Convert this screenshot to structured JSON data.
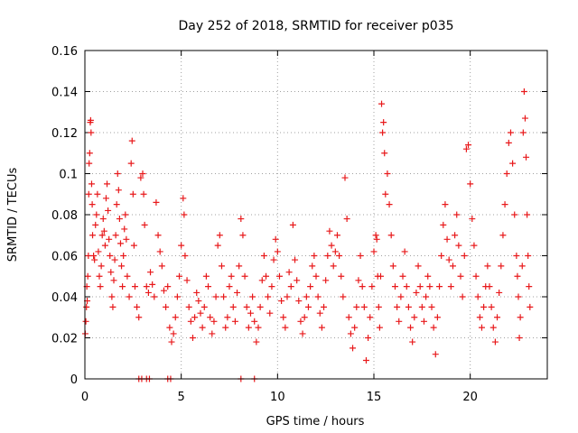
{
  "chart_data": {
    "type": "scatter",
    "title": "Day 252 of 2018, SRMTID for receiver p035",
    "xlabel": "GPS time / hours",
    "ylabel": "SRMTID / TECUs",
    "xlim": [
      0,
      24
    ],
    "ylim": [
      0,
      0.16
    ],
    "xticks": [
      0,
      5,
      10,
      15,
      20
    ],
    "xtick_labels": [
      "0",
      "5",
      "10",
      "15",
      "20"
    ],
    "yticks": [
      0,
      0.02,
      0.04,
      0.06,
      0.08,
      0.1,
      0.12,
      0.14,
      0.16
    ],
    "ytick_labels": [
      "0",
      "0.02",
      "0.04",
      "0.06",
      "0.08",
      "0.1",
      "0.12",
      "0.14",
      "0.16"
    ],
    "grid": true,
    "marker": "plus",
    "color": "#e8191b",
    "series": [
      {
        "name": "SRMTID",
        "points": [
          [
            0.02,
            0.022
          ],
          [
            0.05,
            0.028
          ],
          [
            0.08,
            0.035
          ],
          [
            0.1,
            0.045
          ],
          [
            0.12,
            0.038
          ],
          [
            0.15,
            0.05
          ],
          [
            0.18,
            0.06
          ],
          [
            0.2,
            0.09
          ],
          [
            0.22,
            0.105
          ],
          [
            0.25,
            0.11
          ],
          [
            0.28,
            0.125
          ],
          [
            0.3,
            0.126
          ],
          [
            0.32,
            0.12
          ],
          [
            0.35,
            0.095
          ],
          [
            0.38,
            0.085
          ],
          [
            0.4,
            0.07
          ],
          [
            0.45,
            0.06
          ],
          [
            0.5,
            0.058
          ],
          [
            0.55,
            0.075
          ],
          [
            0.6,
            0.08
          ],
          [
            0.65,
            0.09
          ],
          [
            0.7,
            0.062
          ],
          [
            0.75,
            0.05
          ],
          [
            0.8,
            0.045
          ],
          [
            0.85,
            0.055
          ],
          [
            0.9,
            0.07
          ],
          [
            0.95,
            0.078
          ],
          [
            1.0,
            0.072
          ],
          [
            1.05,
            0.065
          ],
          [
            1.1,
            0.088
          ],
          [
            1.15,
            0.095
          ],
          [
            1.2,
            0.082
          ],
          [
            1.25,
            0.068
          ],
          [
            1.3,
            0.06
          ],
          [
            1.35,
            0.052
          ],
          [
            1.4,
            0.04
          ],
          [
            1.45,
            0.035
          ],
          [
            1.5,
            0.048
          ],
          [
            1.55,
            0.058
          ],
          [
            1.6,
            0.07
          ],
          [
            1.65,
            0.085
          ],
          [
            1.7,
            0.1
          ],
          [
            1.75,
            0.092
          ],
          [
            1.8,
            0.078
          ],
          [
            1.85,
            0.066
          ],
          [
            1.9,
            0.055
          ],
          [
            1.95,
            0.045
          ],
          [
            2.0,
            0.06
          ],
          [
            2.05,
            0.073
          ],
          [
            2.1,
            0.08
          ],
          [
            2.15,
            0.068
          ],
          [
            2.2,
            0.05
          ],
          [
            2.3,
            0.04
          ],
          [
            2.4,
            0.105
          ],
          [
            2.45,
            0.116
          ],
          [
            2.5,
            0.09
          ],
          [
            2.55,
            0.065
          ],
          [
            2.6,
            0.045
          ],
          [
            2.7,
            0.035
          ],
          [
            2.8,
            0.03
          ],
          [
            2.9,
            0.098
          ],
          [
            3.0,
            0.1
          ],
          [
            3.05,
            0.09
          ],
          [
            3.1,
            0.075
          ],
          [
            3.2,
            0.045
          ],
          [
            3.3,
            0.042
          ],
          [
            3.4,
            0.052
          ],
          [
            3.5,
            0.046
          ],
          [
            3.6,
            0.04
          ],
          [
            3.7,
            0.086
          ],
          [
            3.8,
            0.07
          ],
          [
            3.9,
            0.062
          ],
          [
            4.0,
            0.055
          ],
          [
            4.1,
            0.043
          ],
          [
            4.2,
            0.035
          ],
          [
            4.3,
            0.045
          ],
          [
            4.4,
            0.025
          ],
          [
            4.5,
            0.018
          ],
          [
            4.6,
            0.022
          ],
          [
            4.7,
            0.03
          ],
          [
            4.8,
            0.04
          ],
          [
            4.9,
            0.05
          ],
          [
            5.0,
            0.065
          ],
          [
            5.1,
            0.088
          ],
          [
            5.15,
            0.08
          ],
          [
            5.2,
            0.06
          ],
          [
            5.3,
            0.048
          ],
          [
            5.4,
            0.035
          ],
          [
            5.5,
            0.028
          ],
          [
            5.6,
            0.02
          ],
          [
            5.7,
            0.03
          ],
          [
            5.8,
            0.042
          ],
          [
            5.9,
            0.038
          ],
          [
            6.0,
            0.032
          ],
          [
            6.1,
            0.025
          ],
          [
            6.2,
            0.035
          ],
          [
            6.3,
            0.05
          ],
          [
            6.4,
            0.045
          ],
          [
            6.5,
            0.03
          ],
          [
            6.6,
            0.022
          ],
          [
            6.7,
            0.028
          ],
          [
            6.8,
            0.04
          ],
          [
            6.9,
            0.065
          ],
          [
            7.0,
            0.07
          ],
          [
            7.1,
            0.055
          ],
          [
            7.2,
            0.04
          ],
          [
            7.3,
            0.025
          ],
          [
            7.4,
            0.03
          ],
          [
            7.5,
            0.045
          ],
          [
            7.6,
            0.05
          ],
          [
            7.7,
            0.035
          ],
          [
            7.8,
            0.028
          ],
          [
            7.9,
            0.042
          ],
          [
            8.0,
            0.055
          ],
          [
            8.1,
            0.078
          ],
          [
            8.2,
            0.07
          ],
          [
            8.3,
            0.05
          ],
          [
            8.4,
            0.035
          ],
          [
            8.5,
            0.025
          ],
          [
            8.6,
            0.032
          ],
          [
            8.7,
            0.04
          ],
          [
            8.8,
            0.028
          ],
          [
            8.9,
            0.018
          ],
          [
            9.0,
            0.025
          ],
          [
            9.1,
            0.035
          ],
          [
            9.2,
            0.048
          ],
          [
            9.3,
            0.06
          ],
          [
            9.4,
            0.05
          ],
          [
            9.5,
            0.04
          ],
          [
            9.6,
            0.032
          ],
          [
            9.7,
            0.045
          ],
          [
            9.8,
            0.058
          ],
          [
            9.9,
            0.068
          ],
          [
            10.0,
            0.062
          ],
          [
            10.1,
            0.05
          ],
          [
            10.2,
            0.038
          ],
          [
            10.3,
            0.03
          ],
          [
            10.4,
            0.025
          ],
          [
            10.5,
            0.04
          ],
          [
            10.6,
            0.052
          ],
          [
            10.7,
            0.045
          ],
          [
            10.8,
            0.075
          ],
          [
            10.9,
            0.058
          ],
          [
            11.0,
            0.048
          ],
          [
            11.1,
            0.038
          ],
          [
            11.2,
            0.028
          ],
          [
            11.3,
            0.022
          ],
          [
            11.4,
            0.03
          ],
          [
            11.5,
            0.04
          ],
          [
            11.6,
            0.035
          ],
          [
            11.7,
            0.045
          ],
          [
            11.8,
            0.055
          ],
          [
            11.9,
            0.06
          ],
          [
            12.0,
            0.05
          ],
          [
            12.1,
            0.04
          ],
          [
            12.2,
            0.032
          ],
          [
            12.3,
            0.025
          ],
          [
            12.4,
            0.035
          ],
          [
            12.5,
            0.048
          ],
          [
            12.6,
            0.06
          ],
          [
            12.7,
            0.072
          ],
          [
            12.8,
            0.065
          ],
          [
            12.9,
            0.055
          ],
          [
            13.0,
            0.062
          ],
          [
            13.1,
            0.07
          ],
          [
            13.2,
            0.06
          ],
          [
            13.3,
            0.05
          ],
          [
            13.4,
            0.04
          ],
          [
            13.5,
            0.098
          ],
          [
            13.6,
            0.078
          ],
          [
            13.7,
            0.03
          ],
          [
            13.8,
            0.022
          ],
          [
            13.9,
            0.015
          ],
          [
            14.0,
            0.025
          ],
          [
            14.1,
            0.035
          ],
          [
            14.2,
            0.048
          ],
          [
            14.3,
            0.06
          ],
          [
            14.4,
            0.045
          ],
          [
            14.5,
            0.035
          ],
          [
            14.6,
            0.009
          ],
          [
            14.7,
            0.02
          ],
          [
            14.8,
            0.03
          ],
          [
            14.9,
            0.045
          ],
          [
            15.0,
            0.062
          ],
          [
            15.1,
            0.07
          ],
          [
            15.15,
            0.068
          ],
          [
            15.2,
            0.05
          ],
          [
            15.25,
            0.035
          ],
          [
            15.3,
            0.025
          ],
          [
            15.35,
            0.05
          ],
          [
            15.4,
            0.134
          ],
          [
            15.45,
            0.12
          ],
          [
            15.5,
            0.125
          ],
          [
            15.55,
            0.11
          ],
          [
            15.6,
            0.09
          ],
          [
            15.7,
            0.1
          ],
          [
            15.8,
            0.085
          ],
          [
            15.9,
            0.07
          ],
          [
            16.0,
            0.055
          ],
          [
            16.1,
            0.045
          ],
          [
            16.2,
            0.035
          ],
          [
            16.3,
            0.028
          ],
          [
            16.4,
            0.04
          ],
          [
            16.5,
            0.05
          ],
          [
            16.6,
            0.062
          ],
          [
            16.7,
            0.045
          ],
          [
            16.8,
            0.035
          ],
          [
            16.9,
            0.025
          ],
          [
            17.0,
            0.018
          ],
          [
            17.1,
            0.03
          ],
          [
            17.2,
            0.042
          ],
          [
            17.3,
            0.055
          ],
          [
            17.4,
            0.045
          ],
          [
            17.5,
            0.035
          ],
          [
            17.6,
            0.028
          ],
          [
            17.7,
            0.04
          ],
          [
            17.8,
            0.05
          ],
          [
            17.9,
            0.045
          ],
          [
            18.0,
            0.035
          ],
          [
            18.1,
            0.025
          ],
          [
            18.2,
            0.012
          ],
          [
            18.3,
            0.03
          ],
          [
            18.4,
            0.045
          ],
          [
            18.5,
            0.06
          ],
          [
            18.6,
            0.075
          ],
          [
            18.7,
            0.085
          ],
          [
            18.8,
            0.068
          ],
          [
            18.9,
            0.058
          ],
          [
            19.0,
            0.045
          ],
          [
            19.1,
            0.055
          ],
          [
            19.2,
            0.07
          ],
          [
            19.3,
            0.08
          ],
          [
            19.4,
            0.065
          ],
          [
            19.5,
            0.05
          ],
          [
            19.6,
            0.04
          ],
          [
            19.7,
            0.06
          ],
          [
            19.8,
            0.112
          ],
          [
            19.9,
            0.114
          ],
          [
            20.0,
            0.095
          ],
          [
            20.1,
            0.078
          ],
          [
            20.2,
            0.065
          ],
          [
            20.3,
            0.05
          ],
          [
            20.4,
            0.04
          ],
          [
            20.5,
            0.03
          ],
          [
            20.6,
            0.025
          ],
          [
            20.7,
            0.035
          ],
          [
            20.8,
            0.045
          ],
          [
            20.9,
            0.055
          ],
          [
            21.0,
            0.045
          ],
          [
            21.1,
            0.035
          ],
          [
            21.2,
            0.025
          ],
          [
            21.3,
            0.018
          ],
          [
            21.4,
            0.03
          ],
          [
            21.5,
            0.042
          ],
          [
            21.6,
            0.055
          ],
          [
            21.7,
            0.07
          ],
          [
            21.8,
            0.085
          ],
          [
            21.9,
            0.1
          ],
          [
            22.0,
            0.115
          ],
          [
            22.1,
            0.12
          ],
          [
            22.2,
            0.105
          ],
          [
            22.3,
            0.08
          ],
          [
            22.4,
            0.06
          ],
          [
            22.45,
            0.05
          ],
          [
            22.5,
            0.04
          ],
          [
            22.55,
            0.02
          ],
          [
            22.6,
            0.03
          ],
          [
            22.7,
            0.055
          ],
          [
            22.75,
            0.12
          ],
          [
            22.8,
            0.14
          ],
          [
            22.85,
            0.127
          ],
          [
            22.9,
            0.108
          ],
          [
            22.95,
            0.08
          ],
          [
            23.0,
            0.06
          ],
          [
            23.05,
            0.045
          ],
          [
            23.1,
            0.035
          ],
          [
            2.8,
            0
          ],
          [
            2.95,
            0
          ],
          [
            3.2,
            0
          ],
          [
            3.35,
            0
          ],
          [
            4.3,
            0
          ],
          [
            4.45,
            0
          ],
          [
            8.1,
            0
          ],
          [
            8.8,
            0
          ]
        ]
      }
    ]
  }
}
